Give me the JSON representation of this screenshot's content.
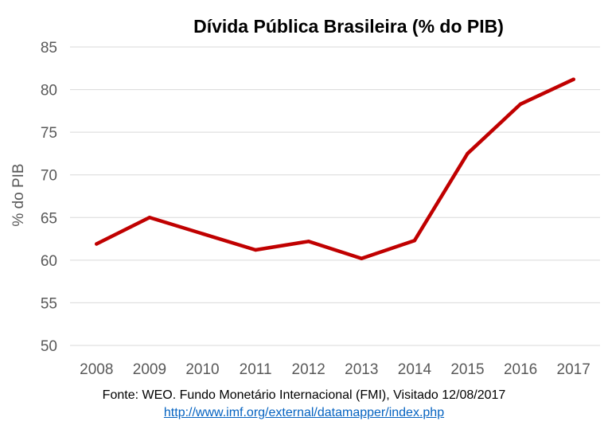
{
  "chart_data": {
    "type": "line",
    "title": "Dívida Pública Brasileira (% do PIB)",
    "xlabel": "",
    "ylabel": "% do PIB",
    "categories": [
      "2008",
      "2009",
      "2010",
      "2011",
      "2012",
      "2013",
      "2014",
      "2015",
      "2016",
      "2017"
    ],
    "series": [
      {
        "name": "",
        "values": [
          61.9,
          65.0,
          63.1,
          61.2,
          62.2,
          60.2,
          62.3,
          72.5,
          78.3,
          81.2
        ]
      }
    ],
    "ylim": [
      50,
      85
    ],
    "yticks": [
      50,
      55,
      60,
      65,
      70,
      75,
      80,
      85
    ],
    "grid": true,
    "legend": "none",
    "colors": {
      "series": "#c00000",
      "grid": "#d9d9d9",
      "ticks": "#595959"
    }
  },
  "footer": {
    "source_text": "Fonte: WEO. Fundo Monetário Internacional (FMI), Visitado 12/08/2017",
    "link_text": "http://www.imf.org/external/datamapper/index.php"
  }
}
